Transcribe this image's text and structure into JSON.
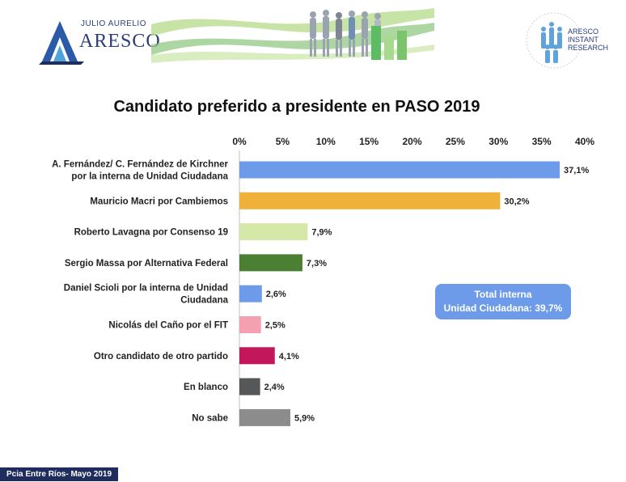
{
  "header": {
    "brand_top": "JULIO AURELIO",
    "brand_main": "ARESCO",
    "right_logo_lines": [
      "ARESCO",
      "INSTANT",
      "RESEARCH"
    ]
  },
  "chart_data": {
    "type": "bar",
    "orientation": "horizontal",
    "title": "Candidato preferido a presidente en PASO 2019",
    "xlim": [
      0,
      40
    ],
    "xticks": [
      "0%",
      "5%",
      "10%",
      "15%",
      "20%",
      "25%",
      "30%",
      "35%",
      "40%"
    ],
    "categories": [
      [
        "A. Fernández/ C. Fernández de Kirchner",
        "por la interna de Unidad Ciudadana"
      ],
      [
        "Mauricio Macri por Cambiemos"
      ],
      [
        "Roberto Lavagna por Consenso 19"
      ],
      [
        "Sergio Massa por Alternativa Federal"
      ],
      [
        "Daniel Scioli por la interna de Unidad",
        "Ciudadana"
      ],
      [
        "Nicolás del Caño por el FIT"
      ],
      [
        "Otro candidato de otro partido"
      ],
      [
        "En blanco"
      ],
      [
        "No sabe"
      ]
    ],
    "values": [
      37.1,
      30.2,
      7.9,
      7.3,
      2.6,
      2.5,
      4.1,
      2.4,
      5.9
    ],
    "value_labels": [
      "37,1%",
      "30,2%",
      "7,9%",
      "7,3%",
      "2,6%",
      "2,5%",
      "4,1%",
      "2,4%",
      "5,9%"
    ],
    "colors": [
      "#6d9bea",
      "#f0b13a",
      "#d6e8a8",
      "#4a7f34",
      "#6d9bea",
      "#f5a0b0",
      "#c2185b",
      "#555759",
      "#8c8c8c"
    ],
    "grid": false,
    "annotation": [
      "Total interna",
      "Unidad Ciudadana: 39,7%"
    ]
  },
  "footer": {
    "text": "Pcia Entre Ríos- Mayo 2019"
  }
}
